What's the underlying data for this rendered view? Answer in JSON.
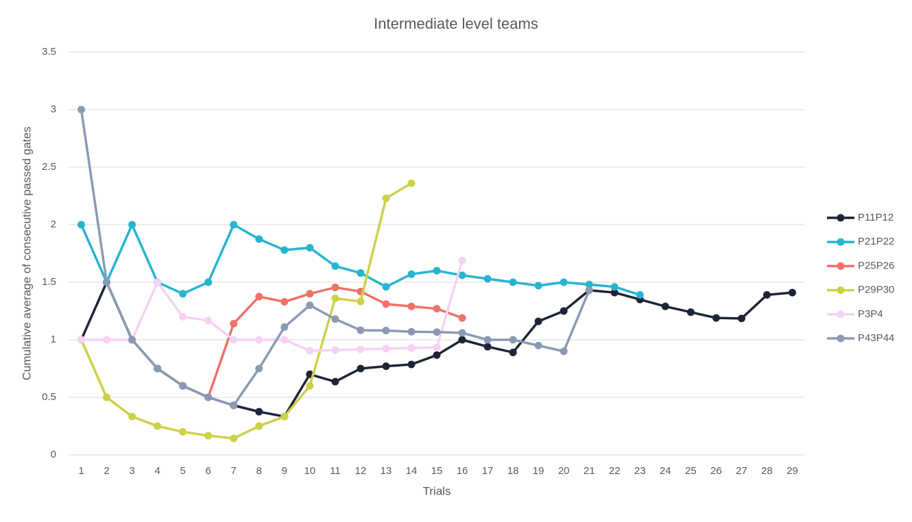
{
  "chart_data": {
    "type": "line",
    "title": "Intermediate level teams",
    "x_label": "Trials",
    "y_label": "Cumulative average of consecutive passed gates",
    "categories": [
      1,
      2,
      3,
      4,
      5,
      6,
      7,
      8,
      9,
      10,
      11,
      12,
      13,
      14,
      15,
      16,
      17,
      18,
      19,
      20,
      21,
      22,
      23,
      24,
      25,
      26,
      27,
      28,
      29
    ],
    "ylim": [
      0,
      3.5
    ],
    "yticks": [
      0,
      0.5,
      1,
      1.5,
      2,
      2.5,
      3,
      3.5
    ],
    "grid": true,
    "legend": "right",
    "series": [
      {
        "name": "P11P12",
        "color": "#1e2437",
        "values": [
          1,
          1.5,
          1,
          0.75,
          0.6,
          0.5,
          0.43,
          0.375,
          0.333,
          0.7,
          0.636,
          0.75,
          0.77,
          0.786,
          0.867,
          1,
          0.94,
          0.89,
          1.16,
          1.25,
          1.43,
          1.41,
          1.35,
          1.29,
          1.24,
          1.19,
          1.185,
          1.39,
          1.41
        ]
      },
      {
        "name": "P21P22",
        "color": "#27b4cf",
        "values": [
          2,
          1.5,
          2,
          1.5,
          1.4,
          1.5,
          2,
          1.875,
          1.78,
          1.8,
          1.64,
          1.58,
          1.46,
          1.57,
          1.6,
          1.56,
          1.53,
          1.5,
          1.47,
          1.5,
          1.48,
          1.46,
          1.39,
          null,
          null,
          null,
          null,
          null,
          null
        ]
      },
      {
        "name": "P25P26",
        "color": "#f0716b",
        "values": [
          null,
          null,
          null,
          null,
          null,
          0.5,
          1.14,
          1.375,
          1.33,
          1.4,
          1.455,
          1.42,
          1.31,
          1.29,
          1.27,
          1.19,
          null,
          null,
          null,
          null,
          null,
          null,
          null,
          null,
          null,
          null,
          null,
          null,
          null
        ]
      },
      {
        "name": "P29P30",
        "color": "#cdd148",
        "values": [
          1,
          0.5,
          0.333,
          0.25,
          0.2,
          0.167,
          0.143,
          0.25,
          0.333,
          0.6,
          1.36,
          1.333,
          2.23,
          2.36,
          null,
          null,
          null,
          null,
          null,
          null,
          null,
          null,
          null,
          null,
          null,
          null,
          null,
          null,
          null
        ]
      },
      {
        "name": "P3P4",
        "color": "#f5d2f5",
        "values": [
          1,
          1,
          1,
          1.5,
          1.2,
          1.167,
          1,
          1,
          1,
          0.905,
          0.91,
          0.917,
          0.923,
          0.929,
          0.933,
          1.69,
          null,
          null,
          null,
          null,
          null,
          null,
          null,
          null,
          null,
          null,
          null,
          null,
          null
        ]
      },
      {
        "name": "P43P44",
        "color": "#8a9ab3",
        "values": [
          3,
          1.5,
          1,
          0.75,
          0.6,
          0.5,
          0.43,
          0.75,
          1.11,
          1.3,
          1.18,
          1.083,
          1.08,
          1.07,
          1.067,
          1.06,
          1,
          1,
          0.95,
          0.9,
          1.43,
          null,
          null,
          null,
          null,
          null,
          null,
          null,
          null
        ]
      }
    ]
  }
}
